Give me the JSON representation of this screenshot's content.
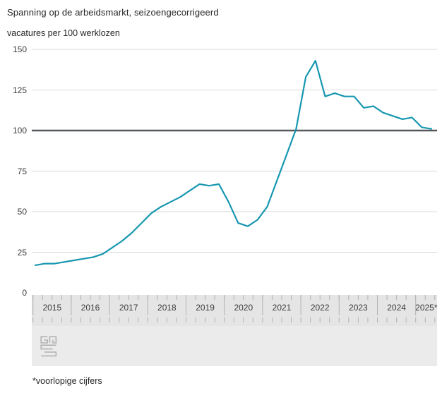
{
  "header": {
    "title": "Spanning op de arbeidsmarkt, seizoengecorrigeerd",
    "subtitle": "vacatures per 100 werklozen"
  },
  "footer": {
    "note": "*voorlopige cijfers"
  },
  "logo": {
    "name": "cbs-logo"
  },
  "chart_data": {
    "type": "line",
    "title": "Spanning op de arbeidsmarkt, seizoengecorrigeerd",
    "ylabel": "vacatures per 100 werklozen",
    "xlabel": "",
    "ylim": [
      0,
      150
    ],
    "yticks": [
      0,
      25,
      50,
      75,
      100,
      125,
      150
    ],
    "reference_line": 100,
    "grid": true,
    "legend": "none",
    "x_years": [
      "2015",
      "2016",
      "2017",
      "2018",
      "2019",
      "2020",
      "2021",
      "2022",
      "2023",
      "2024",
      "2025*"
    ],
    "quarters_per_year": 4,
    "series": [
      {
        "name": "vacatures per 100 werklozen",
        "start": "2015 Q1",
        "end": "2025 Q2",
        "frequency": "quarterly",
        "values": [
          17,
          18,
          18,
          19,
          20,
          21,
          22,
          24,
          28,
          32,
          37,
          43,
          49,
          53,
          56,
          59,
          63,
          67,
          66,
          67,
          56,
          43,
          41,
          45,
          53,
          69,
          85,
          101,
          133,
          143,
          121,
          123,
          121,
          121,
          114,
          115,
          111,
          109,
          107,
          108,
          102,
          101
        ]
      }
    ],
    "colors": {
      "line": "#1797b0",
      "reference": "#55595c",
      "grid": "#d9d9d9",
      "band": "#e5e5e5",
      "logo_area": "#ebebeb",
      "tick": "#b2b2b2",
      "text": "#3c3c3c"
    }
  }
}
